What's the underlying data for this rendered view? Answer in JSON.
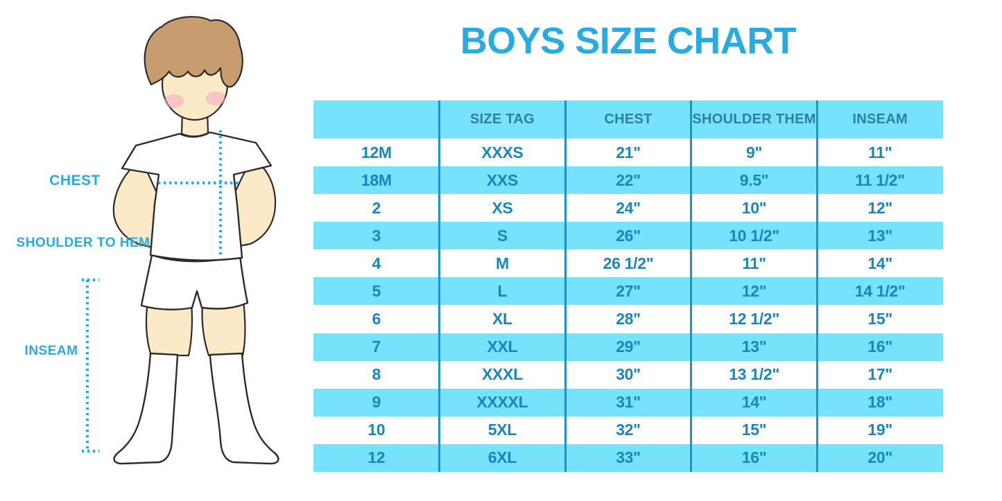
{
  "title": "BOYS SIZE CHART",
  "colors": {
    "accent": "#29ABE2",
    "cell-text": "#1886BF",
    "header-text": "#2E7EA7",
    "stripe": "#76E2FB",
    "divider": "#2191C9",
    "skin": "#FCE9C8",
    "hair": "#C79D6F",
    "outline": "#2B2B2B",
    "blush": "#F3A9C1"
  },
  "figure": {
    "labels": {
      "chest": "CHEST",
      "shoulder_to_hem": "SHOULDER TO HEM",
      "inseam": "INSEAM"
    }
  },
  "chart_data": {
    "type": "table",
    "title": "BOYS SIZE CHART",
    "columns": [
      "",
      "SIZE TAG",
      "CHEST",
      "SHOULDER THEM",
      "INSEAM"
    ],
    "rows": [
      [
        "12M",
        "XXXS",
        "21\"",
        "9\"",
        "11\""
      ],
      [
        "18M",
        "XXS",
        "22\"",
        "9.5\"",
        "11 1/2\""
      ],
      [
        "2",
        "XS",
        "24\"",
        "10\"",
        "12\""
      ],
      [
        "3",
        "S",
        "26\"",
        "10 1/2\"",
        "13\""
      ],
      [
        "4",
        "M",
        "26 1/2\"",
        "11\"",
        "14\""
      ],
      [
        "5",
        "L",
        "27\"",
        "12\"",
        "14 1/2\""
      ],
      [
        "6",
        "XL",
        "28\"",
        "12 1/2\"",
        "15\""
      ],
      [
        "7",
        "XXL",
        "29\"",
        "13\"",
        "16\""
      ],
      [
        "8",
        "XXXL",
        "30\"",
        "13 1/2\"",
        "17\""
      ],
      [
        "9",
        "XXXXL",
        "31\"",
        "14\"",
        "18\""
      ],
      [
        "10",
        "5XL",
        "32\"",
        "15\"",
        "19\""
      ],
      [
        "12",
        "6XL",
        "33\"",
        "16\"",
        "20\""
      ]
    ],
    "layout": {
      "striped_rows": true,
      "stripe_pattern": "header and every second data row light blue",
      "column_dividers": "vertical dark blue lines"
    }
  }
}
